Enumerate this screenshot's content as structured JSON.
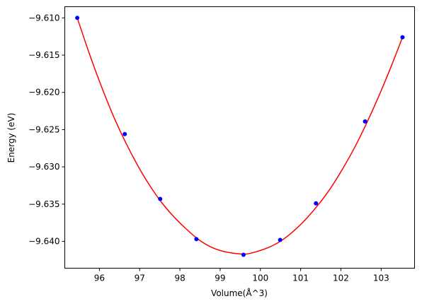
{
  "chart_data": {
    "type": "scatter",
    "xlabel": "Volume(Å^3)",
    "ylabel": "Energy (eV)",
    "xlim": [
      95.14,
      103.83
    ],
    "ylim": [
      -9.6436,
      -9.6085
    ],
    "x_ticks": [
      96,
      97,
      98,
      99,
      100,
      101,
      102,
      103
    ],
    "x_tick_labels": [
      "96",
      "97",
      "98",
      "99",
      "100",
      "101",
      "102",
      "103"
    ],
    "y_ticks": [
      -9.61,
      -9.615,
      -9.62,
      -9.625,
      -9.63,
      -9.635,
      -9.64
    ],
    "y_tick_labels": [
      "−9.610",
      "−9.615",
      "−9.620",
      "−9.625",
      "−9.630",
      "−9.635",
      "−9.640"
    ],
    "grid": false,
    "series": [
      {
        "kind": "points",
        "color": "#0000ff",
        "x": [
          95.45,
          96.63,
          97.51,
          98.41,
          99.58,
          100.49,
          101.38,
          102.6,
          103.53
        ],
        "y": [
          -9.61,
          -9.6256,
          -9.6343,
          -9.6397,
          -9.6418,
          -9.6398,
          -9.6349,
          -9.6239,
          -9.6126
        ]
      },
      {
        "kind": "fit-curve",
        "color": "#ff0000",
        "x": [
          95.45,
          95.75,
          96.05,
          96.35,
          96.65,
          96.95,
          97.25,
          97.55,
          97.85,
          98.15,
          98.45,
          98.75,
          99.05,
          99.35,
          99.65,
          99.95,
          100.25,
          100.55,
          100.85,
          101.15,
          101.45,
          101.75,
          102.05,
          102.35,
          102.65,
          102.95,
          103.25,
          103.53
        ],
        "y": [
          -9.61,
          -9.6148,
          -9.6192,
          -9.6232,
          -9.6267,
          -9.6298,
          -9.6325,
          -9.6348,
          -9.6367,
          -9.6383,
          -9.6397,
          -9.6407,
          -9.6413,
          -9.6416,
          -9.6417,
          -9.6413,
          -9.6407,
          -9.6398,
          -9.6385,
          -9.6369,
          -9.635,
          -9.6328,
          -9.6302,
          -9.6273,
          -9.624,
          -9.6204,
          -9.6165,
          -9.6126
        ]
      }
    ]
  }
}
